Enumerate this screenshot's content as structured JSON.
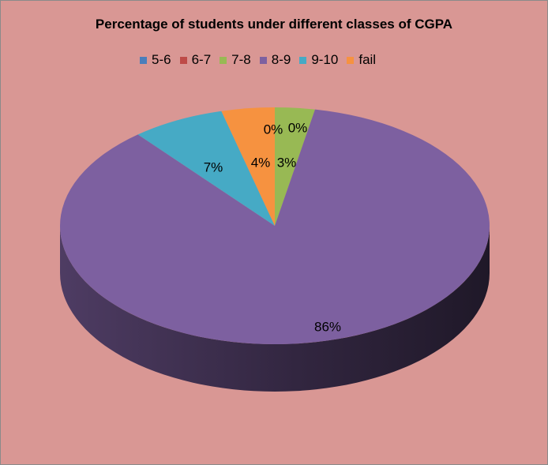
{
  "chart_data": {
    "type": "pie",
    "title": "Percentage of students under different classes of CGPA",
    "categories": [
      "5-6",
      "6-7",
      "7-8",
      "8-9",
      "9-10",
      "fail"
    ],
    "values": [
      0,
      0,
      3,
      86,
      7,
      4
    ],
    "data_labels": [
      "0%",
      "0%",
      "3%",
      "86%",
      "7%",
      "4%"
    ],
    "colors": [
      "#4a7ebb",
      "#be4b48",
      "#98b954",
      "#7d60a0",
      "#46aac5",
      "#f69240"
    ],
    "legend_position": "top",
    "style": "3d"
  }
}
